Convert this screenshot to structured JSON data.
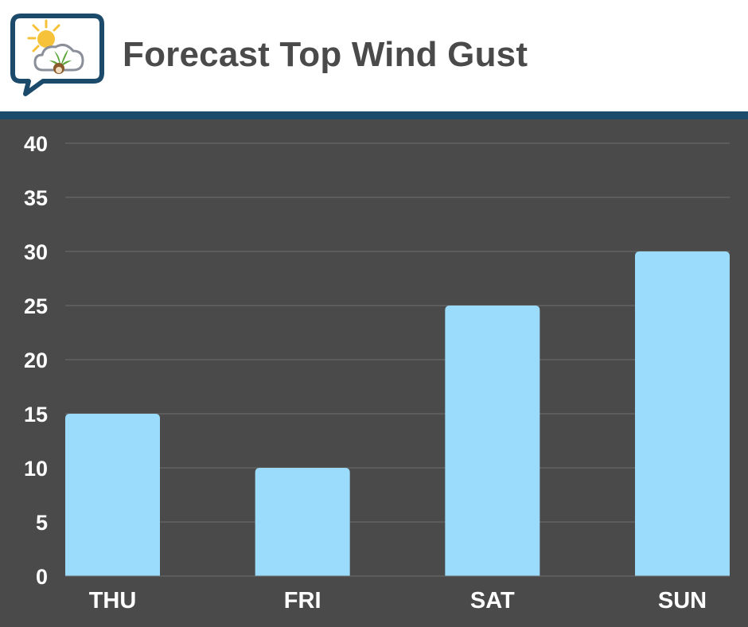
{
  "header": {
    "title": "Forecast Top Wind Gust",
    "logo_icon": "weather-cannabis-logo-icon"
  },
  "colors": {
    "background": "#4a4a4a",
    "bar": "#9bdcfd",
    "rule": "#1c4a6b",
    "title": "#4a4a4a",
    "gridline": "#6e6e6e",
    "tick_text": "#ffffff"
  },
  "chart_data": {
    "type": "bar",
    "categories": [
      "THU",
      "FRI",
      "SAT",
      "SUN"
    ],
    "values": [
      15,
      10,
      25,
      30
    ],
    "title": "",
    "xlabel": "",
    "ylabel": "",
    "ylim": [
      0,
      40
    ],
    "yticks": [
      0,
      5,
      10,
      15,
      20,
      25,
      30,
      35,
      40
    ],
    "grid": true,
    "legend": "none"
  }
}
